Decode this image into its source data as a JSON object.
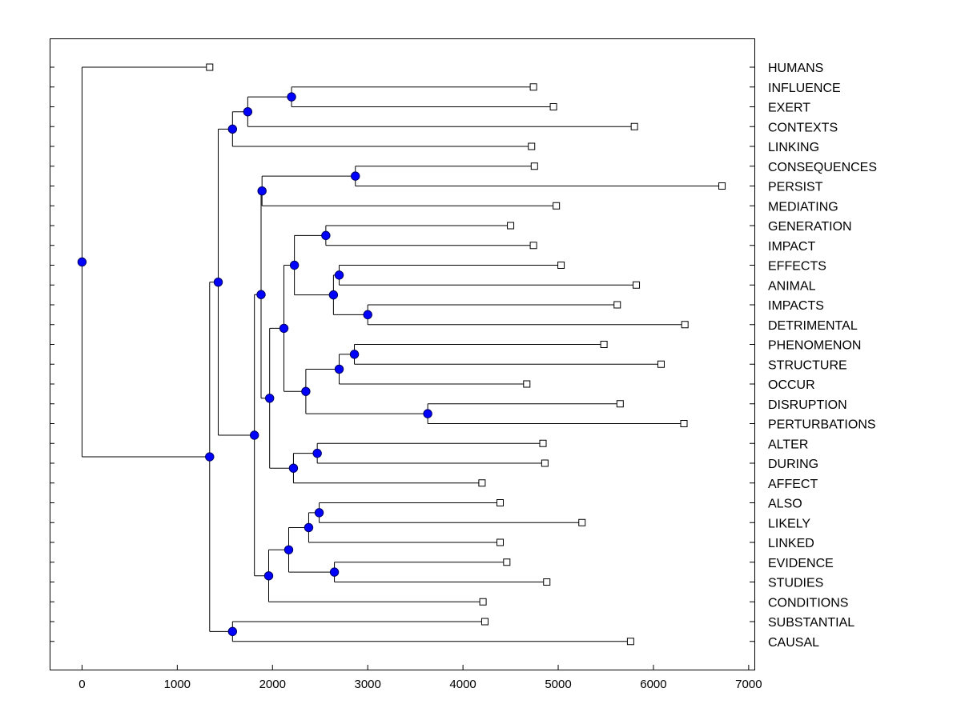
{
  "chart_data": {
    "type": "dendrogram",
    "title": "",
    "xlabel": "",
    "ylabel": "",
    "xlim": [
      -340,
      7060
    ],
    "x_ticks": [
      0,
      1000,
      2000,
      3000,
      4000,
      5000,
      6000,
      7000
    ],
    "x_tick_labels": [
      "0",
      "1000",
      "2000",
      "3000",
      "4000",
      "5000",
      "6000",
      "7000"
    ],
    "grid": false,
    "leaves": [
      {
        "id": "L0",
        "label": "HUMANS",
        "value": 1340
      },
      {
        "id": "L1",
        "label": "INFLUENCE",
        "value": 4740
      },
      {
        "id": "L2",
        "label": "EXERT",
        "value": 4950
      },
      {
        "id": "L3",
        "label": "CONTEXTS",
        "value": 5800
      },
      {
        "id": "L4",
        "label": "LINKING",
        "value": 4720
      },
      {
        "id": "L5",
        "label": "CONSEQUENCES",
        "value": 4750
      },
      {
        "id": "L6",
        "label": "PERSIST",
        "value": 6720
      },
      {
        "id": "L7",
        "label": "MEDIATING",
        "value": 4980
      },
      {
        "id": "L8",
        "label": "GENERATION",
        "value": 4500
      },
      {
        "id": "L9",
        "label": "IMPACT",
        "value": 4740
      },
      {
        "id": "L10",
        "label": "EFFECTS",
        "value": 5030
      },
      {
        "id": "L11",
        "label": "ANIMAL",
        "value": 5820
      },
      {
        "id": "L12",
        "label": "IMPACTS",
        "value": 5620
      },
      {
        "id": "L13",
        "label": "DETRIMENTAL",
        "value": 6330
      },
      {
        "id": "L14",
        "label": "PHENOMENON",
        "value": 5480
      },
      {
        "id": "L15",
        "label": "STRUCTURE",
        "value": 6080
      },
      {
        "id": "L16",
        "label": "OCCUR",
        "value": 4670
      },
      {
        "id": "L17",
        "label": "DISRUPTION",
        "value": 5650
      },
      {
        "id": "L18",
        "label": "PERTURBATIONS",
        "value": 6320
      },
      {
        "id": "L19",
        "label": "ALTER",
        "value": 4840
      },
      {
        "id": "L20",
        "label": "DURING",
        "value": 4860
      },
      {
        "id": "L21",
        "label": "AFFECT",
        "value": 4200
      },
      {
        "id": "L22",
        "label": "ALSO",
        "value": 4390
      },
      {
        "id": "L23",
        "label": "LIKELY",
        "value": 5250
      },
      {
        "id": "L24",
        "label": "LINKED",
        "value": 4390
      },
      {
        "id": "L25",
        "label": "EVIDENCE",
        "value": 4460
      },
      {
        "id": "L26",
        "label": "STUDIES",
        "value": 4880
      },
      {
        "id": "L27",
        "label": "CONDITIONS",
        "value": 4210
      },
      {
        "id": "L28",
        "label": "SUBSTANTIAL",
        "value": 4230
      },
      {
        "id": "L29",
        "label": "CAUSAL",
        "value": 5760
      }
    ],
    "merges": [
      {
        "id": "N1",
        "value": 2200,
        "children": [
          "L1",
          "L2"
        ]
      },
      {
        "id": "N2",
        "value": 1740,
        "children": [
          "N1",
          "L3"
        ]
      },
      {
        "id": "N3",
        "value": 1580,
        "children": [
          "N2",
          "L4"
        ]
      },
      {
        "id": "N4",
        "value": 2870,
        "children": [
          "L5",
          "L6"
        ]
      },
      {
        "id": "N5",
        "value": 1890,
        "children": [
          "N4",
          "L7"
        ]
      },
      {
        "id": "N6",
        "value": 2560,
        "children": [
          "L8",
          "L9"
        ]
      },
      {
        "id": "N7",
        "value": 2700,
        "children": [
          "L10",
          "L11"
        ]
      },
      {
        "id": "N8",
        "value": 3000,
        "children": [
          "L12",
          "L13"
        ]
      },
      {
        "id": "N9",
        "value": 2640,
        "children": [
          "N7",
          "N8"
        ]
      },
      {
        "id": "N10",
        "value": 2230,
        "children": [
          "N6",
          "N9"
        ]
      },
      {
        "id": "N11",
        "value": 2860,
        "children": [
          "L14",
          "L15"
        ]
      },
      {
        "id": "N12",
        "value": 2700,
        "children": [
          "N11",
          "L16"
        ]
      },
      {
        "id": "N13",
        "value": 3630,
        "children": [
          "L17",
          "L18"
        ]
      },
      {
        "id": "N14",
        "value": 2350,
        "children": [
          "N12",
          "N13"
        ]
      },
      {
        "id": "N15",
        "value": 2120,
        "children": [
          "N10",
          "N14"
        ]
      },
      {
        "id": "N16",
        "value": 2470,
        "children": [
          "L19",
          "L20"
        ]
      },
      {
        "id": "N17",
        "value": 2220,
        "children": [
          "N16",
          "L21"
        ]
      },
      {
        "id": "N18",
        "value": 1970,
        "children": [
          "N15",
          "N17"
        ]
      },
      {
        "id": "N19",
        "value": 1880,
        "children": [
          "N5",
          "N18"
        ]
      },
      {
        "id": "N20",
        "value": 2490,
        "children": [
          "L22",
          "L23"
        ]
      },
      {
        "id": "N21",
        "value": 2380,
        "children": [
          "N20",
          "L24"
        ]
      },
      {
        "id": "N22",
        "value": 2650,
        "children": [
          "L25",
          "L26"
        ]
      },
      {
        "id": "N23",
        "value": 2170,
        "children": [
          "N21",
          "N22"
        ]
      },
      {
        "id": "N24",
        "value": 1960,
        "children": [
          "N23",
          "L27"
        ]
      },
      {
        "id": "N25",
        "value": 1810,
        "children": [
          "N19",
          "N24"
        ]
      },
      {
        "id": "N26",
        "value": 1430,
        "children": [
          "N3",
          "N25"
        ]
      },
      {
        "id": "N27",
        "value": 1580,
        "children": [
          "L28",
          "L29"
        ]
      },
      {
        "id": "N28",
        "value": 1340,
        "children": [
          "N26",
          "N27"
        ]
      },
      {
        "id": "N29",
        "value": 0,
        "children": [
          "L0",
          "N28"
        ]
      }
    ],
    "colors": {
      "node_fill": "#0000ff",
      "node_stroke": "#000060",
      "leaf_fill": "#ffffff",
      "line": "#000000",
      "frame": "#000000"
    }
  }
}
